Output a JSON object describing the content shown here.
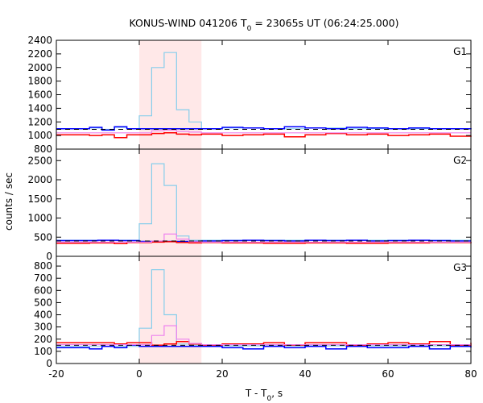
{
  "chart_data": {
    "type": "line",
    "title": {
      "prefix": "KONUS-WIND 041206 T",
      "sub": "0",
      "suffix": " = 23065s UT (06:24:25.000)"
    },
    "xlabel": {
      "prefix": "T - T",
      "sub": "0",
      "suffix": ", s"
    },
    "ylabel": "counts / sec",
    "xlim": [
      -20,
      80
    ],
    "xticks": [
      -20,
      0,
      20,
      40,
      60,
      80
    ],
    "highlight_interval": [
      0,
      15
    ],
    "colors": {
      "highlight": "#ffe8e8",
      "total": "#87ceeb",
      "high": "#0000ff",
      "low": "#ff0000",
      "mid": "#ee82ee",
      "bg_line": "#000000"
    },
    "panels": [
      {
        "label": "G1",
        "ylim": [
          800,
          2400
        ],
        "yticks": [
          800,
          1000,
          1200,
          1400,
          1600,
          1800,
          2000,
          2200,
          2400
        ],
        "background": 1090,
        "series": [
          {
            "name": "total",
            "color": "#87ceeb",
            "x": [
              -20,
              -15,
              -12,
              -9,
              -6,
              -3,
              0,
              3,
              6,
              9,
              12,
              15,
              20,
              30,
              40,
              50,
              60,
              70,
              80
            ],
            "y": [
              1100,
              1100,
              1110,
              1090,
              1120,
              1100,
              1290,
              2000,
              2220,
              1380,
              1200,
              1100,
              1110,
              1100,
              1110,
              1100,
              1100,
              1100,
              1090
            ]
          },
          {
            "name": "blue",
            "color": "#0000ff",
            "x": [
              -20,
              -12,
              -9,
              -6,
              -3,
              0,
              15,
              20,
              25,
              30,
              35,
              40,
              45,
              50,
              55,
              60,
              65,
              70,
              75,
              80
            ],
            "y": [
              1100,
              1120,
              1080,
              1130,
              1100,
              1100,
              1100,
              1120,
              1110,
              1100,
              1130,
              1110,
              1100,
              1120,
              1110,
              1100,
              1110,
              1100,
              1100,
              1090
            ]
          },
          {
            "name": "red",
            "color": "#ff0000",
            "x": [
              -20,
              -12,
              -9,
              -6,
              -3,
              0,
              3,
              6,
              9,
              12,
              15,
              20,
              25,
              30,
              35,
              40,
              45,
              50,
              55,
              60,
              65,
              70,
              75,
              80
            ],
            "y": [
              1010,
              1000,
              1010,
              970,
              1010,
              1010,
              1030,
              1040,
              1020,
              1010,
              1020,
              1000,
              1010,
              1020,
              980,
              1010,
              1030,
              1010,
              1020,
              1000,
              1010,
              1020,
              990,
              1000
            ]
          },
          {
            "name": "violet",
            "color": "#ee82ee",
            "x": [
              -20,
              -10,
              0,
              3,
              6,
              9,
              12,
              15,
              30,
              50,
              80
            ],
            "y": [
              1040,
              1040,
              1040,
              1070,
              1080,
              1060,
              1050,
              1040,
              1040,
              1040,
              1040
            ]
          }
        ]
      },
      {
        "label": "G2",
        "ylim": [
          0,
          2800
        ],
        "yticks": [
          0,
          500,
          1000,
          1500,
          2000,
          2500
        ],
        "background": 400,
        "series": [
          {
            "name": "total",
            "color": "#87ceeb",
            "x": [
              -20,
              -5,
              0,
              3,
              6,
              9,
              12,
              15,
              20,
              30,
              40,
              50,
              60,
              70,
              80
            ],
            "y": [
              420,
              420,
              850,
              2420,
              1850,
              530,
              420,
              420,
              420,
              420,
              420,
              420,
              420,
              420,
              420
            ]
          },
          {
            "name": "blue",
            "color": "#0000ff",
            "x": [
              -20,
              -10,
              -5,
              0,
              15,
              20,
              25,
              30,
              35,
              40,
              45,
              50,
              55,
              60,
              65,
              70,
              75,
              80
            ],
            "y": [
              410,
              420,
              410,
              390,
              400,
              410,
              420,
              410,
              400,
              420,
              410,
              420,
              400,
              410,
              420,
              410,
              400,
              400
            ]
          },
          {
            "name": "red",
            "color": "#ff0000",
            "x": [
              -20,
              -12,
              -6,
              -3,
              0,
              3,
              6,
              9,
              12,
              15,
              20,
              30,
              40,
              50,
              60,
              70,
              80
            ],
            "y": [
              340,
              350,
              330,
              360,
              360,
              370,
              380,
              360,
              350,
              360,
              350,
              340,
              350,
              340,
              350,
              360,
              340
            ]
          },
          {
            "name": "violet",
            "color": "#ee82ee",
            "x": [
              -20,
              0,
              3,
              6,
              9,
              12,
              15,
              80
            ],
            "y": [
              370,
              370,
              400,
              580,
              450,
              380,
              370,
              370
            ]
          }
        ]
      },
      {
        "label": "G3",
        "ylim": [
          0,
          880
        ],
        "yticks": [
          0,
          100,
          200,
          300,
          400,
          500,
          600,
          700,
          800
        ],
        "background": 150,
        "series": [
          {
            "name": "total",
            "color": "#87ceeb",
            "x": [
              -20,
              -5,
              0,
              3,
              6,
              9,
              12,
              15,
              80
            ],
            "y": [
              140,
              140,
              290,
              770,
              400,
              160,
              150,
              145,
              145
            ]
          },
          {
            "name": "blue",
            "color": "#0000ff",
            "x": [
              -20,
              -12,
              -9,
              -6,
              -3,
              0,
              15,
              20,
              25,
              30,
              35,
              40,
              45,
              50,
              55,
              60,
              65,
              70,
              75,
              80
            ],
            "y": [
              130,
              120,
              140,
              130,
              150,
              140,
              140,
              130,
              120,
              140,
              130,
              140,
              120,
              140,
              130,
              130,
              140,
              120,
              140,
              130
            ]
          },
          {
            "name": "red",
            "color": "#ff0000",
            "x": [
              -20,
              -12,
              -6,
              -3,
              0,
              3,
              6,
              9,
              12,
              15,
              20,
              30,
              35,
              40,
              50,
              55,
              60,
              65,
              70,
              75,
              80
            ],
            "y": [
              170,
              170,
              160,
              170,
              170,
              150,
              160,
              180,
              160,
              150,
              160,
              170,
              150,
              170,
              150,
              160,
              170,
              160,
              180,
              150,
              170
            ]
          },
          {
            "name": "violet",
            "color": "#ee82ee",
            "x": [
              -20,
              0,
              3,
              6,
              9,
              12,
              15,
              80
            ],
            "y": [
              155,
              155,
              230,
              310,
              200,
              165,
              155,
              155
            ]
          }
        ]
      }
    ]
  }
}
